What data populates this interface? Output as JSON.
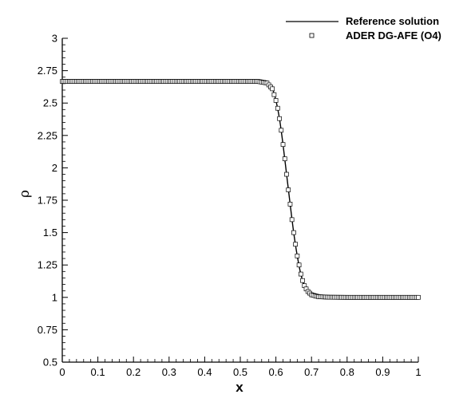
{
  "chart_data": {
    "type": "line",
    "title": "",
    "xlabel": "x",
    "ylabel": "ρ",
    "xlim": [
      0,
      1
    ],
    "ylim": [
      0.5,
      3
    ],
    "x_ticks": [
      "0",
      "0.1",
      "0.2",
      "0.3",
      "0.4",
      "0.5",
      "0.6",
      "0.7",
      "0.8",
      "0.9",
      "1"
    ],
    "y_ticks": [
      "0.5",
      "0.75",
      "1",
      "1.25",
      "1.5",
      "1.75",
      "2",
      "2.25",
      "2.5",
      "2.75",
      "3"
    ],
    "grid": false,
    "legend_position": "top-right",
    "series": [
      {
        "name": "Reference solution",
        "style": "line",
        "color": "#000000",
        "x": [
          0.0,
          0.5,
          0.55,
          0.575,
          0.59,
          0.6,
          0.61,
          0.62,
          0.63,
          0.64,
          0.65,
          0.66,
          0.67,
          0.68,
          0.69,
          0.7,
          0.72,
          0.75,
          0.8,
          0.9,
          1.0
        ],
        "y": [
          2.667,
          2.667,
          2.667,
          2.655,
          2.61,
          2.52,
          2.38,
          2.18,
          1.95,
          1.72,
          1.5,
          1.32,
          1.18,
          1.09,
          1.045,
          1.02,
          1.005,
          1.001,
          1.0,
          1.0,
          1.0
        ]
      },
      {
        "name": "ADER DG-AFE (O4)",
        "style": "markers",
        "marker": "square",
        "color": "#000000",
        "x": [
          0.0,
          0.1,
          0.2,
          0.3,
          0.4,
          0.5,
          0.55,
          0.575,
          0.59,
          0.6,
          0.605,
          0.61,
          0.615,
          0.62,
          0.625,
          0.63,
          0.635,
          0.64,
          0.645,
          0.65,
          0.655,
          0.66,
          0.665,
          0.67,
          0.675,
          0.68,
          0.685,
          0.69,
          0.7,
          0.72,
          0.75,
          0.8,
          0.9,
          1.0
        ],
        "y": [
          2.667,
          2.667,
          2.667,
          2.667,
          2.667,
          2.667,
          2.667,
          2.655,
          2.61,
          2.52,
          2.46,
          2.38,
          2.29,
          2.18,
          2.07,
          1.95,
          1.83,
          1.72,
          1.6,
          1.5,
          1.41,
          1.32,
          1.25,
          1.18,
          1.13,
          1.09,
          1.065,
          1.045,
          1.02,
          1.005,
          1.001,
          1.0,
          1.0,
          1.0
        ],
        "marker_spacing": 0.005
      }
    ]
  }
}
